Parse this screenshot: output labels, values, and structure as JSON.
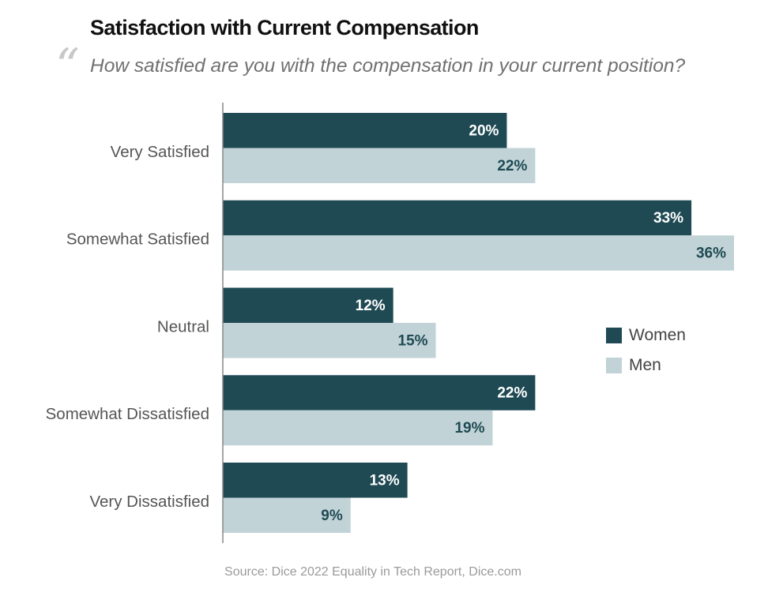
{
  "header": {
    "title": "Satisfaction with Current Compensation",
    "quote_mark": "“",
    "subtitle": "How satisfied are you with the compensation in your current position?"
  },
  "colors": {
    "women": "#1f4a53",
    "men": "#c1d3d7",
    "women_label": "#ffffff",
    "men_label": "#1f4a53",
    "category_label": "#555555",
    "axis": "#888888"
  },
  "chart_data": {
    "type": "bar",
    "orientation": "horizontal",
    "categories": [
      "Very Satisfied",
      "Somewhat Satisfied",
      "Neutral",
      "Somewhat Dissatisfied",
      "Very Dissatisfied"
    ],
    "series": [
      {
        "name": "Women",
        "values": [
          20,
          33,
          12,
          22,
          13
        ]
      },
      {
        "name": "Men",
        "values": [
          22,
          36,
          15,
          19,
          9
        ]
      }
    ],
    "value_suffix": "%",
    "xlim": [
      0,
      36
    ],
    "grid": false,
    "legend_position": "right"
  },
  "legend": {
    "items": [
      {
        "label": "Women"
      },
      {
        "label": "Men"
      }
    ]
  },
  "footer": {
    "source": "Source: Dice 2022 Equality in Tech Report, Dice.com"
  }
}
